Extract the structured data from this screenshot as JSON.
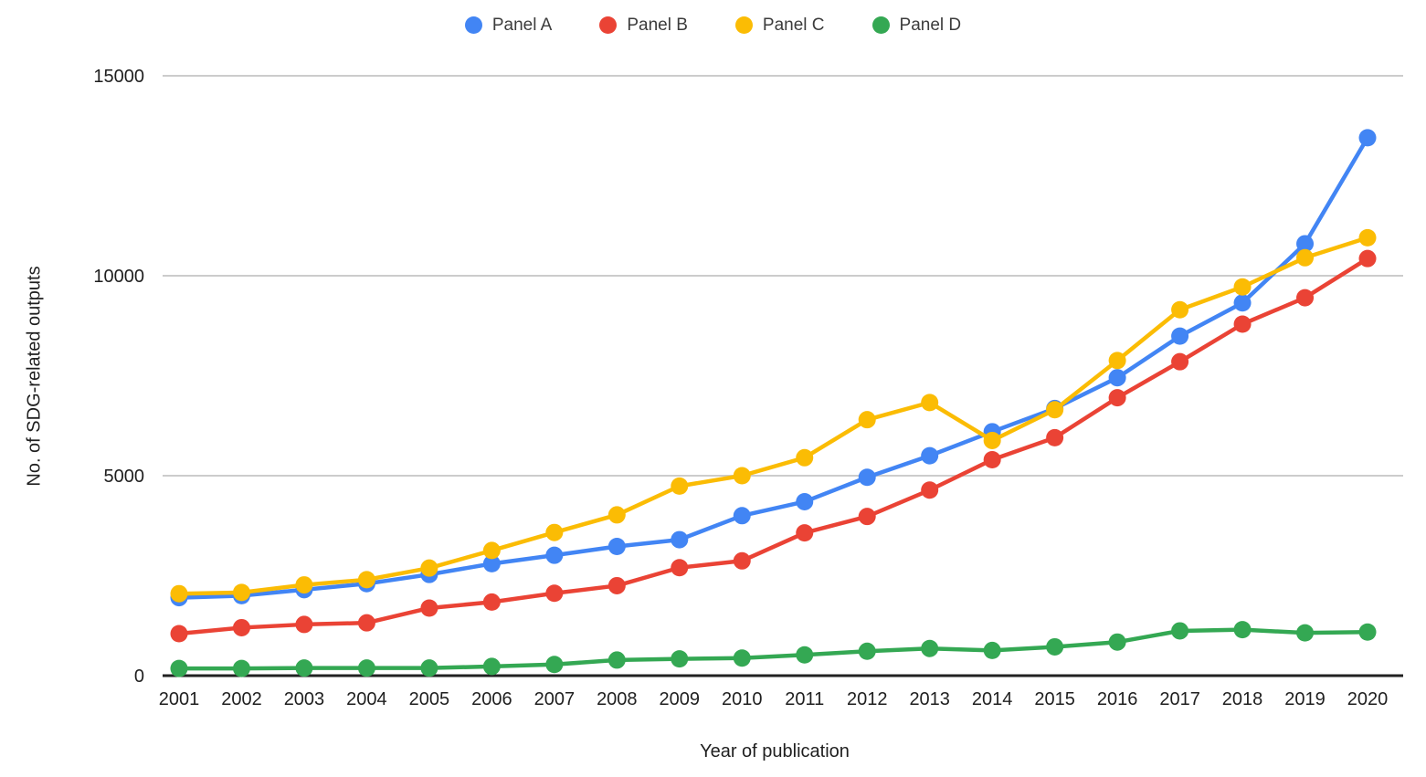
{
  "chart_data": {
    "type": "line",
    "title": "",
    "xlabel": "Year of publication",
    "ylabel": "No. of SDG-related outputs",
    "x": [
      2001,
      2002,
      2003,
      2004,
      2005,
      2006,
      2007,
      2008,
      2009,
      2010,
      2011,
      2012,
      2013,
      2014,
      2015,
      2016,
      2017,
      2018,
      2019,
      2020
    ],
    "series": [
      {
        "name": "Panel A",
        "color": "#4285F4",
        "values": [
          1950,
          2000,
          2150,
          2300,
          2530,
          2800,
          3010,
          3230,
          3400,
          4000,
          4350,
          4960,
          5500,
          6100,
          6680,
          7450,
          8490,
          9320,
          10800,
          13450
        ]
      },
      {
        "name": "Panel B",
        "color": "#EA4335",
        "values": [
          1050,
          1200,
          1280,
          1320,
          1690,
          1840,
          2060,
          2250,
          2700,
          2870,
          3570,
          3980,
          4640,
          5400,
          5950,
          6950,
          7850,
          8790,
          9450,
          10430
        ]
      },
      {
        "name": "Panel C",
        "color": "#FBBC04",
        "values": [
          2050,
          2080,
          2270,
          2400,
          2690,
          3130,
          3580,
          4020,
          4740,
          5000,
          5450,
          6400,
          6830,
          5880,
          6650,
          7880,
          9150,
          9720,
          10450,
          10950
        ]
      },
      {
        "name": "Panel D",
        "color": "#34A853",
        "values": [
          180,
          180,
          190,
          190,
          190,
          230,
          280,
          390,
          420,
          440,
          520,
          610,
          680,
          630,
          720,
          840,
          1120,
          1150,
          1070,
          1090
        ]
      }
    ],
    "ylim": [
      0,
      15000
    ],
    "yticks": [
      0,
      5000,
      10000,
      15000
    ],
    "legend_position": "top-center",
    "grid": "horizontal",
    "gridline_color": "#cccccc",
    "baseline_color": "#212121",
    "tick_label_color": "#1f1f1f",
    "background": "#ffffff"
  }
}
